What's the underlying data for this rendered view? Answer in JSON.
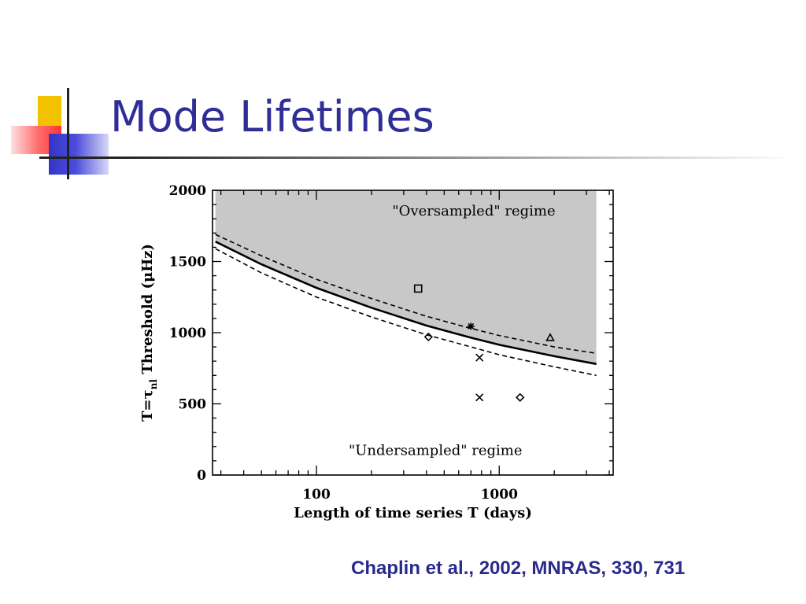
{
  "slide": {
    "title": "Mode Lifetimes",
    "citation": "Chaplin et al., 2002,  MNRAS, 330, 731"
  },
  "colors": {
    "title": "#2e2e96",
    "citation": "#2a2a8e",
    "shaded_region": "#c8c8c8",
    "deco_yellow": "#f2c200",
    "deco_red": "#ff3434",
    "deco_blue": "#3434c8"
  },
  "chart_data": {
    "type": "line",
    "title": "",
    "xlabel": "Length of time series T (days)",
    "ylabel_prefix": "T=τ",
    "ylabel_subscript": "nl",
    "ylabel_suffix": " Threshold (μHz)",
    "xscale": "log",
    "xlim": [
      27,
      4200
    ],
    "ylim": [
      0,
      2000
    ],
    "xticks": [
      {
        "value": 100,
        "label": "100"
      },
      {
        "value": 1000,
        "label": "1000"
      }
    ],
    "yticks": [
      {
        "value": 0,
        "label": "0"
      },
      {
        "value": 500,
        "label": "500"
      },
      {
        "value": 1000,
        "label": "1000"
      },
      {
        "value": 1500,
        "label": "1500"
      },
      {
        "value": 2000,
        "label": "2000"
      }
    ],
    "grid": false,
    "annotations": [
      {
        "text": "\"Oversampled\" regime",
        "x": 260,
        "y": 1855
      },
      {
        "text": "\"Undersampled\" regime",
        "x": 150,
        "y": 175
      }
    ],
    "shaded_region": {
      "x_range": [
        28,
        3400
      ],
      "y_top": 2000,
      "bounded_below_by": "threshold"
    },
    "series": [
      {
        "role": "threshold",
        "style": "solid",
        "x": [
          28,
          50,
          100,
          200,
          400,
          700,
          1000,
          2000,
          3400
        ],
        "y": [
          1640,
          1480,
          1315,
          1175,
          1050,
          965,
          915,
          835,
          780
        ]
      },
      {
        "role": "upper-bound",
        "style": "dashed",
        "x": [
          28,
          50,
          100,
          200,
          400,
          700,
          1000,
          2000,
          3400
        ],
        "y": [
          1690,
          1540,
          1375,
          1240,
          1115,
          1030,
          980,
          900,
          855
        ]
      },
      {
        "role": "lower-bound",
        "style": "dashed",
        "x": [
          28,
          50,
          100,
          200,
          400,
          700,
          1000,
          2000,
          3400
        ],
        "y": [
          1590,
          1420,
          1250,
          1110,
          985,
          900,
          845,
          760,
          700
        ]
      }
    ],
    "points": [
      {
        "marker": "square",
        "x": 360,
        "y": 1310
      },
      {
        "marker": "asterisk",
        "x": 700,
        "y": 1045
      },
      {
        "marker": "diamond",
        "x": 410,
        "y": 970
      },
      {
        "marker": "triangle",
        "x": 1900,
        "y": 965
      },
      {
        "marker": "cross",
        "x": 780,
        "y": 825
      },
      {
        "marker": "cross",
        "x": 780,
        "y": 545
      },
      {
        "marker": "diamond",
        "x": 1300,
        "y": 545
      }
    ]
  }
}
